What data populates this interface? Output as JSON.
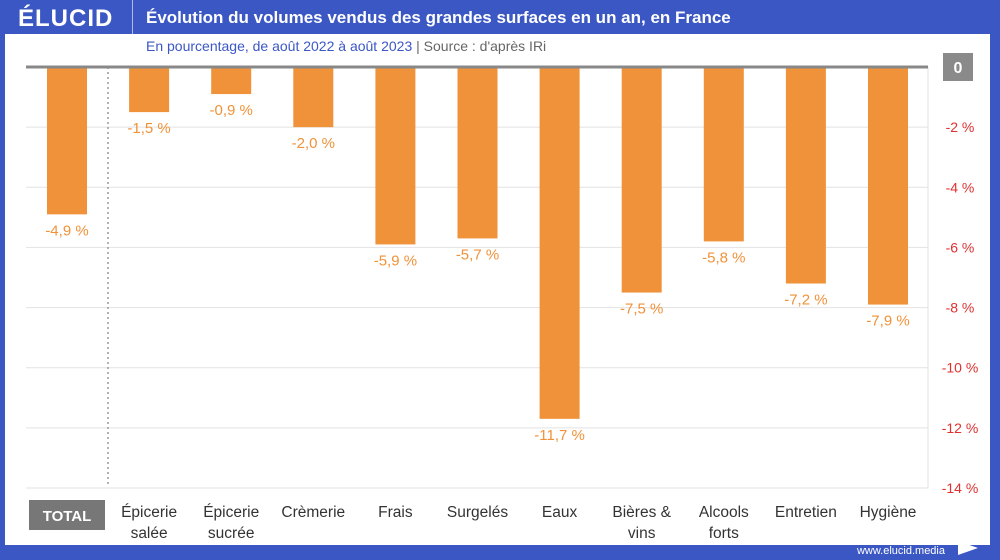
{
  "brand": {
    "logo": "ÉLUCID",
    "footer_url": "www.elucid.media",
    "color": "#3b57c4"
  },
  "header": {
    "title": "Évolution du volumes vendus des grandes surfaces en un an, en France",
    "subtitle": "En pourcentage, de août 2022 à août 2023",
    "separator": "|",
    "source": "Source : d'après IRi"
  },
  "chart_data": {
    "type": "bar",
    "categories": [
      [
        "TOTAL"
      ],
      [
        "Épicerie",
        "salée"
      ],
      [
        "Épicerie",
        "sucrée"
      ],
      [
        "Crèmerie"
      ],
      [
        "Frais"
      ],
      [
        "Surgelés"
      ],
      [
        "Eaux"
      ],
      [
        "Bières &",
        "vins"
      ],
      [
        "Alcools",
        "forts"
      ],
      [
        "Entretien"
      ],
      [
        "Hygiène"
      ]
    ],
    "values": [
      -4.9,
      -1.5,
      -0.9,
      -2.0,
      -5.9,
      -5.7,
      -11.7,
      -7.5,
      -5.8,
      -7.2,
      -7.9
    ],
    "data_labels": [
      "-4,9 %",
      "-1,5 %",
      "-0,9 %",
      "-2,0 %",
      "-5,9 %",
      "-5,7 %",
      "-11,7 %",
      "-7,5 %",
      "-5,8 %",
      "-7,2 %",
      "-7,9 %"
    ],
    "ylim": [
      -14,
      0
    ],
    "yticks": [
      0,
      -2,
      -4,
      -6,
      -8,
      -10,
      -12,
      -14
    ],
    "ytick_labels": [
      "0",
      "-2 %",
      "-4 %",
      "-6 %",
      "-8 %",
      "-10 %",
      "-12 %",
      "-14 %"
    ],
    "axis_position": "right",
    "grid": true,
    "bar_color": "#f0923a",
    "label_color": "#f0923a",
    "tick_color": "#e03030"
  }
}
